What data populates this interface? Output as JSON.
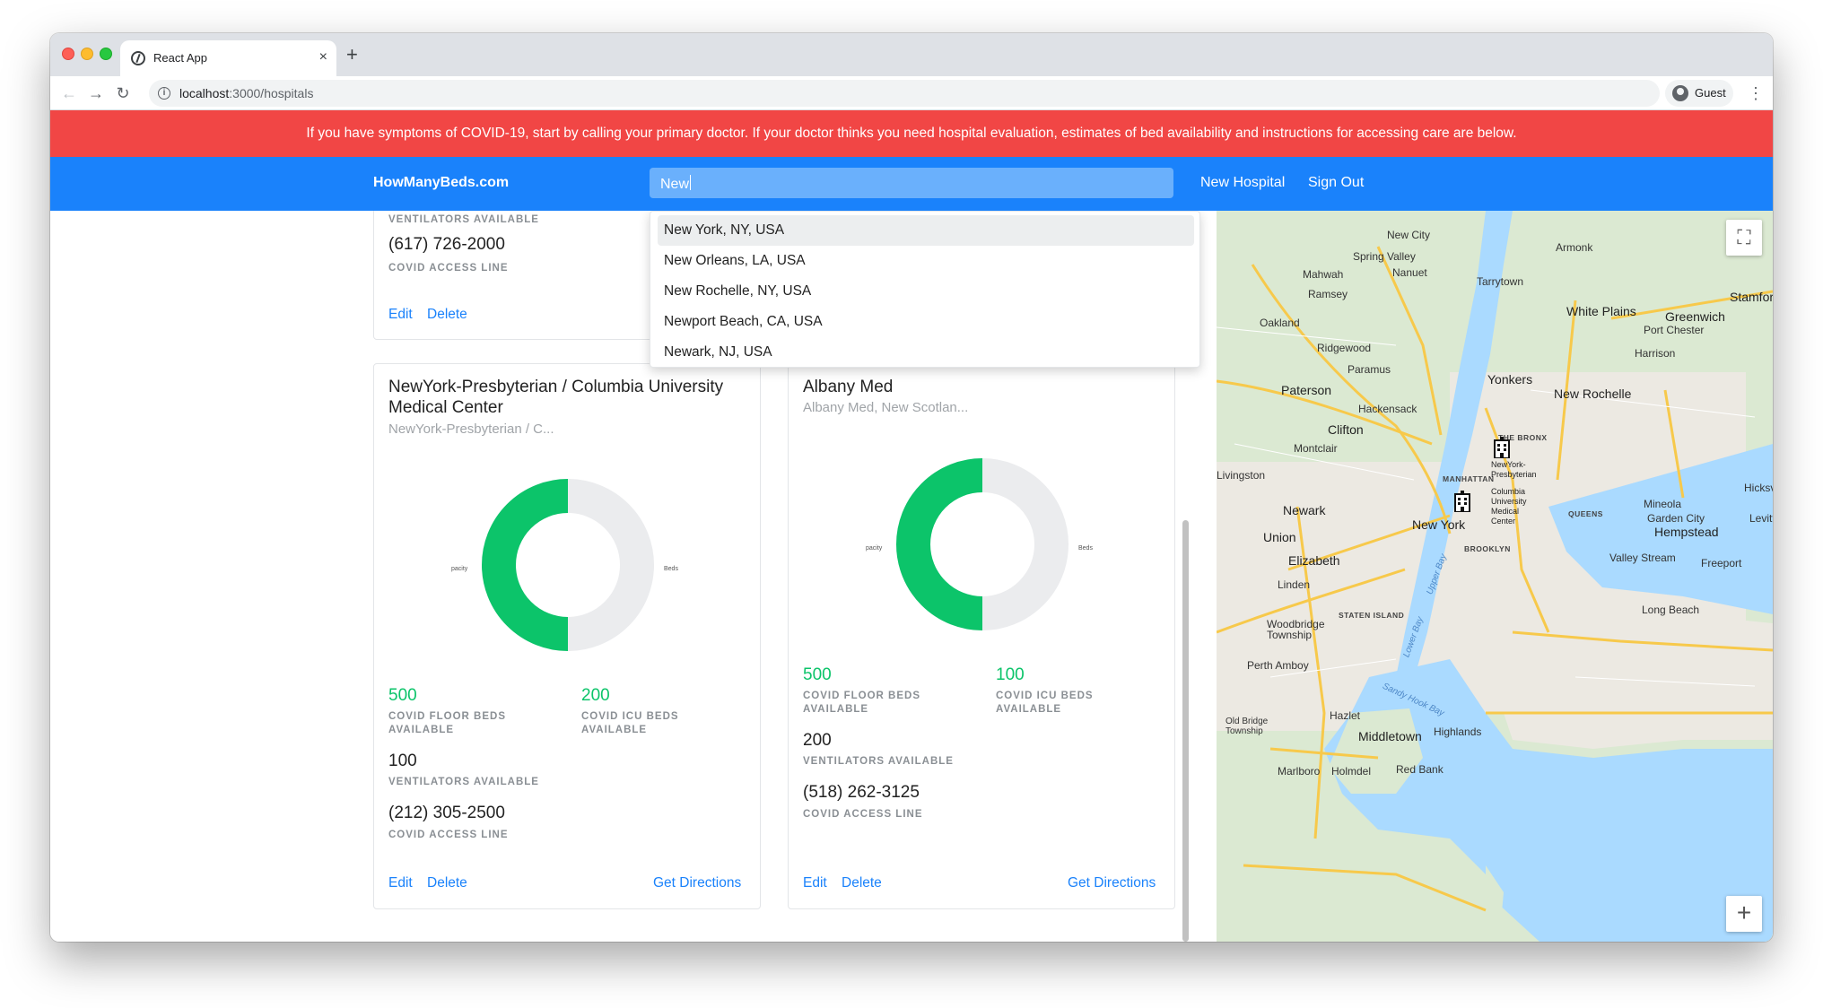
{
  "browser": {
    "tab_title": "React App",
    "tab_close": "×",
    "new_tab": "+",
    "url_host": "localhost",
    "url_path": ":3000/hospitals",
    "profile_label": "Guest",
    "back": "←",
    "forward": "→",
    "reload": "↻",
    "menu": "⋮"
  },
  "banner": {
    "text": "If you have symptoms of COVID-19, start by calling your primary doctor. If your doctor thinks you need hospital evaluation, estimates of bed availability and instructions for accessing care are below."
  },
  "navbar": {
    "brand": "HowManyBeds.com",
    "search_value": "New",
    "new_hospital": "New Hospital",
    "sign_out": "Sign Out"
  },
  "search_suggestions": [
    "New York, NY, USA",
    "New Orleans, LA, USA",
    "New Rochelle, NY, USA",
    "Newport Beach, CA, USA",
    "Newark, NJ, USA"
  ],
  "top_card": {
    "ventilators_label": "VENTILATORS AVAILABLE",
    "phone": "(617) 726-2000",
    "phone_label": "COVID ACCESS LINE",
    "edit": "Edit",
    "delete": "Delete"
  },
  "hospitals": [
    {
      "name": "NewYork-Presbyterian / Columbia University Medical Center",
      "name_line1": "NewYork-Presbyterian / Columbia University",
      "name_line2": "Medical Center",
      "subtitle": "NewYork-Presbyterian / C...",
      "chart_left_label": "pacity",
      "chart_right_label": "Beds",
      "floor_beds": "500",
      "floor_beds_label_1": "COVID FLOOR BEDS",
      "floor_beds_label_2": "AVAILABLE",
      "icu_beds": "200",
      "icu_beds_label_1": "COVID ICU BEDS",
      "icu_beds_label_2": "AVAILABLE",
      "ventilators": "100",
      "ventilators_label": "VENTILATORS AVAILABLE",
      "phone": "(212) 305-2500",
      "phone_label": "COVID ACCESS LINE",
      "edit": "Edit",
      "delete": "Delete",
      "directions": "Get Directions"
    },
    {
      "name": "Albany Med",
      "subtitle": "Albany Med, New Scotlan...",
      "chart_left_label": "pacity",
      "chart_right_label": "Beds",
      "floor_beds": "500",
      "floor_beds_label_1": "COVID FLOOR BEDS",
      "floor_beds_label_2": "AVAILABLE",
      "icu_beds": "100",
      "icu_beds_label_1": "COVID ICU BEDS",
      "icu_beds_label_2": "AVAILABLE",
      "ventilators": "200",
      "ventilators_label": "VENTILATORS AVAILABLE",
      "phone": "(518) 262-3125",
      "phone_label": "COVID ACCESS LINE",
      "edit": "Edit",
      "delete": "Delete",
      "directions": "Get Directions"
    }
  ],
  "colors": {
    "banner": "#f14645",
    "navbar": "#1a82fb",
    "available": "#0cc46a",
    "unavailable": "#ebecee",
    "link": "#1a82fb"
  },
  "map": {
    "fullscreen_icon": "⛶",
    "zoom_in": "+",
    "places": [
      "New City",
      "Spring Valley",
      "Nanuet",
      "Mahwah",
      "Ramsey",
      "Tarrytown",
      "Armonk",
      "White Plains",
      "Greenwich",
      "Stamford",
      "Port Chester",
      "Harrison",
      "Oakland",
      "Ridgewood",
      "Paramus",
      "Yonkers",
      "New Rochelle",
      "Paterson",
      "Hackensack",
      "Clifton",
      "Montclair",
      "THE BRONX",
      "MANHATTAN",
      "Newark",
      "New York",
      "QUEENS",
      "Mineola",
      "Garden City",
      "Hempstead",
      "Union",
      "Elizabeth",
      "BROOKLYN",
      "Valley Stream",
      "Freeport",
      "Linden",
      "Long Beach",
      "STATEN ISLAND",
      "Woodbridge Township",
      "Perth Amboy",
      "Hazlet",
      "Old Bridge Township",
      "Middletown",
      "Highlands",
      "Marlboro",
      "Holmdel",
      "Red Bank",
      "Hicksville",
      "Livingston",
      "Levitt"
    ],
    "water": [
      "Upper Bay",
      "Lower Bay",
      "Sandy Hook Bay"
    ],
    "markers": [
      {
        "label": "NewYork-Presbyterian"
      },
      {
        "label": "Columbia University Medical Center"
      }
    ]
  }
}
